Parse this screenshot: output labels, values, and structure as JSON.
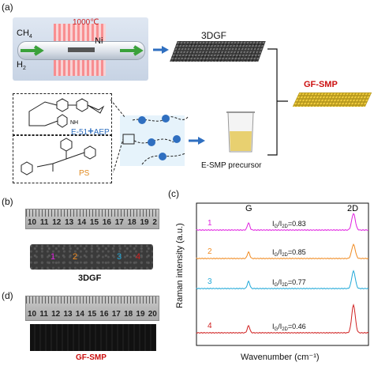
{
  "panel_a": {
    "label": "(a)",
    "reactor_temp": "1000℃",
    "gas_in_1": "CH",
    "gas_in_1_sub": "4",
    "gas_in_2": "H",
    "gas_in_2_sub": "2",
    "metal": "Ni",
    "foam_label": "3DGF",
    "product_label": "GF-SMP",
    "resin_label": "E-51",
    "plus": "+",
    "hardener_label": "AEP",
    "polymer_label": "PS",
    "precursor_label": "E-SMP precursor"
  },
  "panel_b": {
    "label": "(b)",
    "ruler_numbers": [
      "10",
      "11",
      "12",
      "13",
      "14",
      "15",
      "16",
      "17",
      "18",
      "19",
      "2"
    ],
    "markers": [
      "1",
      "2",
      "3",
      "4"
    ],
    "sample_label": "3DGF"
  },
  "panel_d": {
    "label": "(d)",
    "ruler_numbers": [
      "10",
      "11",
      "12",
      "13",
      "14",
      "15",
      "16",
      "17",
      "18",
      "19",
      "20"
    ],
    "sample_label": "GF-SMP"
  },
  "panel_c": {
    "label": "(c)",
    "ylabel": "Raman intensity (a.u.)",
    "xlabel": "Wavenumber (cm⁻¹)",
    "peak_g": "G",
    "peak_2d": "2D"
  },
  "chart_data": {
    "type": "line",
    "xlabel": "Wavenumber (cm⁻¹)",
    "ylabel": "Raman intensity (a.u.)",
    "series": [
      {
        "name": "1",
        "color": "#e020e0",
        "ratio": "0.83",
        "g_height": 0.5,
        "d_height": 0.95
      },
      {
        "name": "2",
        "color": "#f08a20",
        "ratio": "0.85",
        "g_height": 0.45,
        "d_height": 0.8
      },
      {
        "name": "3",
        "color": "#20a8d8",
        "ratio": "0.77",
        "g_height": 0.5,
        "d_height": 1.0
      },
      {
        "name": "4",
        "color": "#d02020",
        "ratio": "0.46",
        "g_height": 0.5,
        "d_height": 1.6
      }
    ]
  },
  "colors": {
    "accent_blue": "#2f6fc0",
    "product_red": "#cc1010",
    "ps_orange": "#e08a20"
  }
}
